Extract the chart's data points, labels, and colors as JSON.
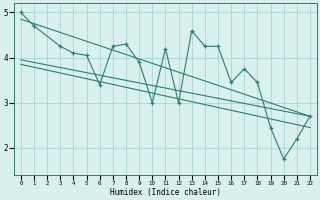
{
  "main_x": [
    0,
    1,
    3,
    4,
    5,
    6,
    7,
    8,
    9,
    10,
    11,
    12,
    13,
    14,
    15,
    16,
    17,
    18,
    19,
    20,
    21,
    22
  ],
  "main_y": [
    5.0,
    4.7,
    4.25,
    4.1,
    4.05,
    3.4,
    4.25,
    4.3,
    3.9,
    3.0,
    4.2,
    3.0,
    4.6,
    4.25,
    4.25,
    3.45,
    3.75,
    3.45,
    2.45,
    1.75,
    2.2,
    2.7
  ],
  "line1_x": [
    0,
    22
  ],
  "line1_y": [
    3.95,
    2.7
  ],
  "line2_x": [
    0,
    22
  ],
  "line2_y": [
    4.85,
    2.7
  ],
  "line3_x": [
    0,
    22
  ],
  "line3_y": [
    3.85,
    2.45
  ],
  "color": "#2e7d6e",
  "bg_color": "#d8f0ee",
  "grid_color": "#b0d8d4",
  "xlim": [
    -0.5,
    22.5
  ],
  "ylim": [
    1.4,
    5.2
  ],
  "xlabel": "Humidex (Indice chaleur)",
  "yticks": [
    2,
    3,
    4,
    5
  ],
  "xticks": [
    0,
    1,
    2,
    3,
    4,
    5,
    6,
    7,
    8,
    9,
    10,
    11,
    12,
    13,
    14,
    15,
    16,
    17,
    18,
    19,
    20,
    21,
    22
  ]
}
